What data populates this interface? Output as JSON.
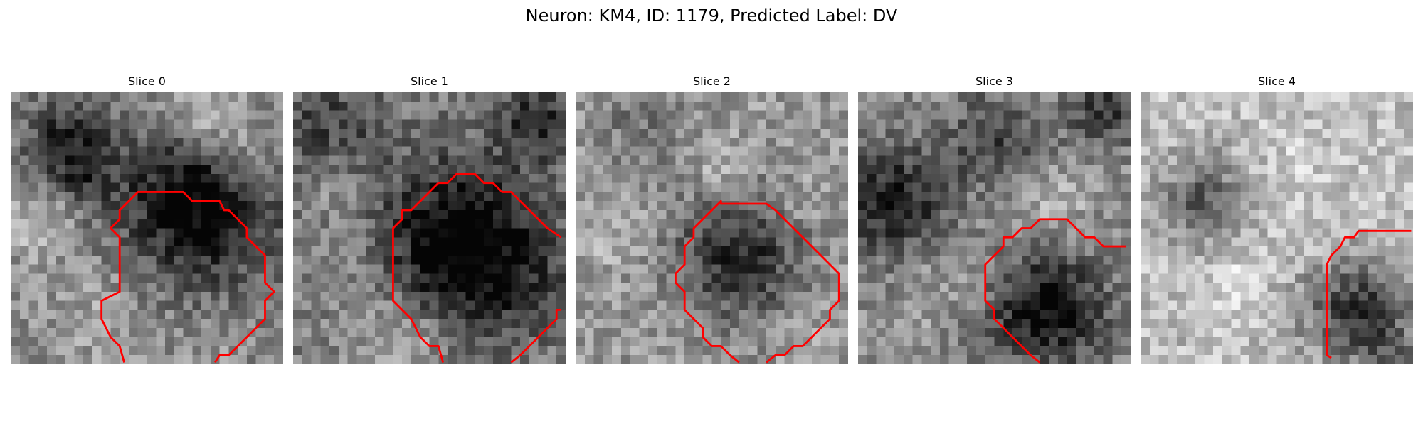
{
  "figure": {
    "suptitle": "Neuron: KM4, ID: 1179, Predicted Label: DV"
  },
  "panels": [
    {
      "title": "Slice 0"
    },
    {
      "title": "Slice 1"
    },
    {
      "title": "Slice 2"
    },
    {
      "title": "Slice 3"
    },
    {
      "title": "Slice 4"
    }
  ],
  "colors": {
    "contour": "#ff0000",
    "background": "#ffffff"
  }
}
